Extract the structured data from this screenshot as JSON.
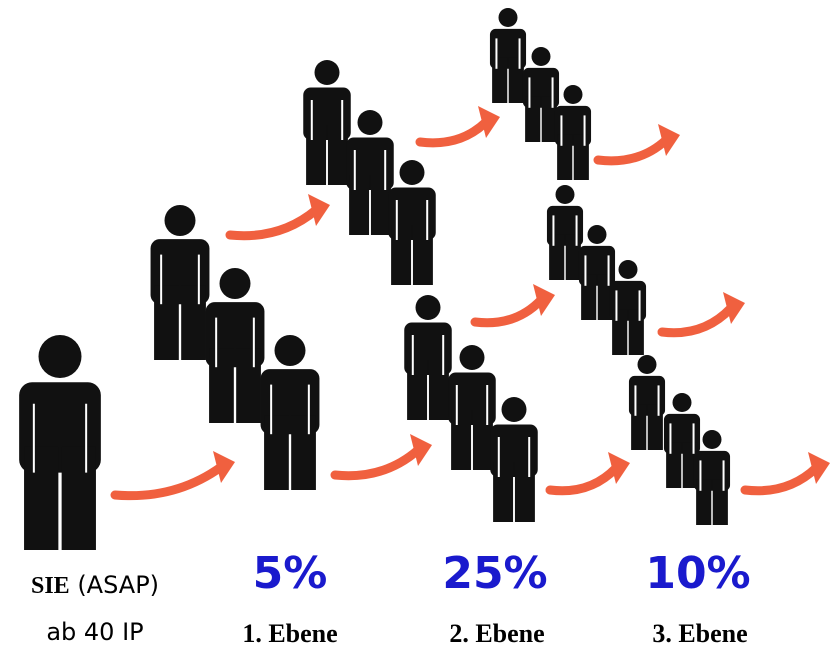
{
  "person": {
    "name": "SIE",
    "note": "(ASAP)",
    "condition": "ab 40 IP"
  },
  "levels": [
    {
      "percent": "5%",
      "label": "1. Ebene"
    },
    {
      "percent": "25%",
      "label": "2. Ebene"
    },
    {
      "percent": "10%",
      "label": "3. Ebene"
    }
  ]
}
